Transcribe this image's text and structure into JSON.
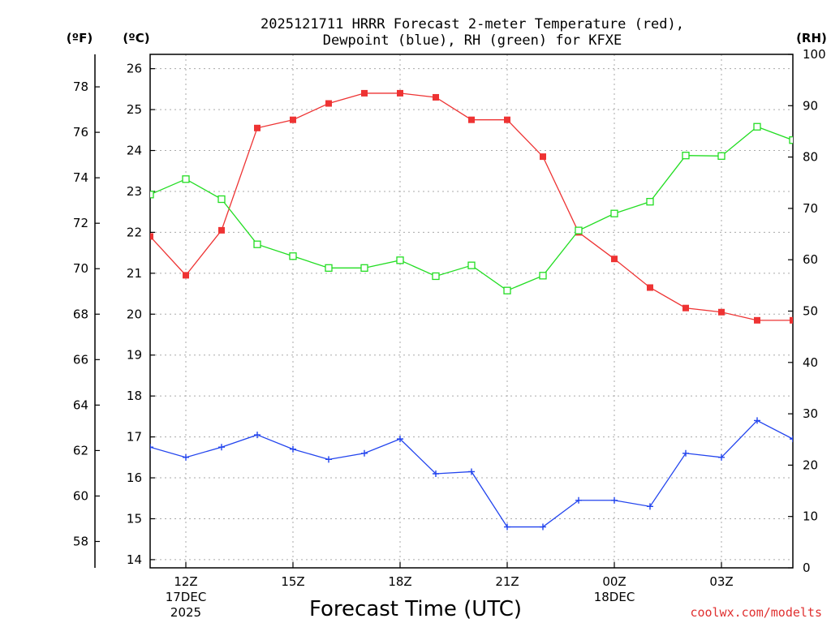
{
  "chart_data": {
    "type": "line",
    "title_line1": "2025121711 HRRR Forecast 2-meter Temperature (red),",
    "title_line2": "Dewpoint (blue), RH (green) for KFXE",
    "xlabel": "Forecast Time (UTC)",
    "watermark": "coolwx.com/modelts",
    "unit_f": "(ºF)",
    "unit_c": "(ºC)",
    "unit_rh": "(RH)",
    "fahrenheit_ticks": [
      "58",
      "60",
      "62",
      "64",
      "66",
      "68",
      "70",
      "72",
      "74",
      "76",
      "78"
    ],
    "celsius_ticks": [
      "14",
      "15",
      "16",
      "17",
      "18",
      "19",
      "20",
      "21",
      "22",
      "23",
      "24",
      "25",
      "26"
    ],
    "rh_ticks": [
      "0",
      "10",
      "20",
      "30",
      "40",
      "50",
      "60",
      "70",
      "80",
      "90",
      "100"
    ],
    "celsius_range": [
      13.8,
      26.35
    ],
    "rh_range": [
      0,
      100
    ],
    "x_range": [
      11,
      29
    ],
    "x_ticks": [
      {
        "x": 12,
        "label": "12Z",
        "sub1": "17DEC",
        "sub2": "2025"
      },
      {
        "x": 15,
        "label": "15Z",
        "sub1": "",
        "sub2": ""
      },
      {
        "x": 18,
        "label": "18Z",
        "sub1": "",
        "sub2": ""
      },
      {
        "x": 21,
        "label": "21Z",
        "sub1": "",
        "sub2": ""
      },
      {
        "x": 24,
        "label": "00Z",
        "sub1": "18DEC",
        "sub2": ""
      },
      {
        "x": 27,
        "label": "03Z",
        "sub1": "",
        "sub2": ""
      }
    ],
    "hours": [
      11,
      12,
      13,
      14,
      15,
      16,
      17,
      18,
      19,
      20,
      21,
      22,
      23,
      24,
      25,
      26,
      27,
      28,
      29
    ],
    "series": [
      {
        "name": "Temperature",
        "unit": "C",
        "color": "#ee3333",
        "marker": "filled-square",
        "values": [
          21.9,
          20.95,
          22.05,
          24.55,
          24.75,
          25.15,
          25.4,
          25.4,
          25.3,
          24.75,
          24.75,
          23.85,
          22.0,
          21.35,
          20.65,
          20.15,
          20.05,
          19.85,
          19.85
        ]
      },
      {
        "name": "Dewpoint",
        "unit": "C",
        "color": "#2244ee",
        "marker": "plus",
        "values": [
          16.75,
          16.5,
          16.75,
          17.05,
          16.7,
          16.45,
          16.6,
          16.95,
          16.1,
          16.15,
          14.8,
          14.8,
          15.45,
          15.45,
          15.3,
          16.6,
          16.5,
          17.4,
          16.95
        ]
      },
      {
        "name": "RH",
        "unit": "%",
        "color": "#22dd22",
        "marker": "open-square",
        "values": [
          72.7,
          75.7,
          71.8,
          63.0,
          60.7,
          58.4,
          58.4,
          59.9,
          56.8,
          58.9,
          54.0,
          56.9,
          65.7,
          69.0,
          71.3,
          80.3,
          80.2,
          85.9,
          83.3
        ]
      }
    ]
  }
}
